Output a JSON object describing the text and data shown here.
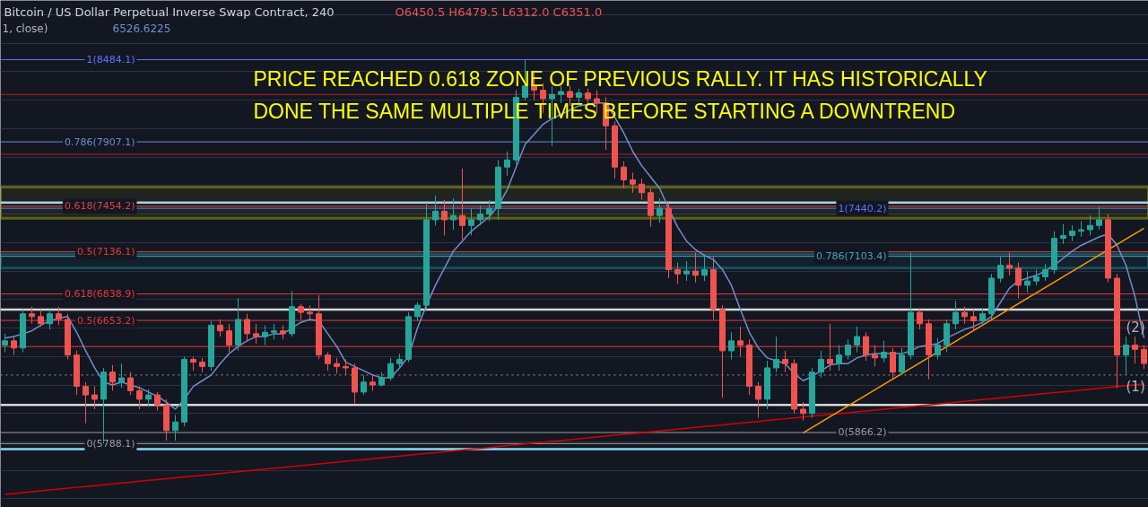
{
  "chart_data": {
    "type": "candlestick",
    "title": "Bitcoin / US Dollar Perpetual Inverse Swap Contract, 240",
    "categories": [
      null,
      null,
      null,
      null,
      null,
      null,
      null,
      null,
      null,
      null,
      null,
      null,
      null,
      null,
      null,
      null,
      null,
      null,
      null,
      null,
      null,
      null,
      null,
      null,
      null,
      null,
      null,
      null,
      null,
      null,
      null,
      null,
      null,
      null,
      null,
      null,
      null,
      null,
      null,
      null,
      null,
      null,
      null,
      null,
      null,
      null,
      null,
      null,
      null,
      null,
      null,
      null,
      null,
      null,
      null,
      null,
      null,
      null,
      null,
      null,
      null,
      null,
      null,
      null,
      null,
      null,
      null,
      null,
      null,
      null,
      null,
      null,
      null,
      null,
      null,
      null,
      null,
      null,
      null,
      null,
      null,
      null,
      null,
      null,
      null,
      null,
      null,
      null,
      null,
      null,
      null,
      null,
      null,
      null,
      null,
      null,
      null,
      null,
      null,
      null,
      null,
      null,
      null,
      null,
      null,
      null,
      null,
      null,
      null,
      null,
      null,
      null,
      null,
      null,
      null,
      null,
      null,
      null,
      null,
      null,
      null,
      null,
      null,
      null,
      null,
      null,
      null,
      null
    ],
    "ohlc": [
      [
        6480,
        6560,
        6430,
        6510
      ],
      [
        6510,
        6540,
        6410,
        6460
      ],
      [
        6460,
        6730,
        6430,
        6700
      ],
      [
        6700,
        6750,
        6630,
        6680
      ],
      [
        6680,
        6730,
        6610,
        6630
      ],
      [
        6630,
        6730,
        6590,
        6700
      ],
      [
        6700,
        6750,
        6620,
        6660
      ],
      [
        6660,
        6700,
        6380,
        6410
      ],
      [
        6410,
        6440,
        6130,
        6190
      ],
      [
        6190,
        6220,
        5930,
        6130
      ],
      [
        6130,
        6190,
        6030,
        6100
      ],
      [
        6100,
        6320,
        5790,
        6290
      ],
      [
        6290,
        6340,
        6160,
        6220
      ],
      [
        6220,
        6350,
        6180,
        6250
      ],
      [
        6250,
        6290,
        6130,
        6160
      ],
      [
        6160,
        6190,
        6030,
        6100
      ],
      [
        6100,
        6170,
        6050,
        6130
      ],
      [
        6130,
        6150,
        6020,
        6060
      ],
      [
        6060,
        6100,
        5810,
        5880
      ],
      [
        5880,
        5990,
        5810,
        5940
      ],
      [
        5940,
        6400,
        5910,
        6380
      ],
      [
        6380,
        6400,
        6300,
        6360
      ],
      [
        6360,
        6390,
        6290,
        6330
      ],
      [
        6330,
        6650,
        6300,
        6620
      ],
      [
        6620,
        6660,
        6540,
        6580
      ],
      [
        6580,
        6630,
        6430,
        6480
      ],
      [
        6480,
        6810,
        6440,
        6660
      ],
      [
        6660,
        6700,
        6510,
        6560
      ],
      [
        6560,
        6630,
        6490,
        6540
      ],
      [
        6540,
        6620,
        6480,
        6570
      ],
      [
        6570,
        6630,
        6520,
        6580
      ],
      [
        6580,
        6620,
        6520,
        6560
      ],
      [
        6560,
        6860,
        6540,
        6750
      ],
      [
        6750,
        6770,
        6660,
        6710
      ],
      [
        6710,
        6760,
        6660,
        6700
      ],
      [
        6700,
        6830,
        6380,
        6410
      ],
      [
        6410,
        6430,
        6300,
        6350
      ],
      [
        6350,
        6390,
        6280,
        6330
      ],
      [
        6330,
        6380,
        6270,
        6320
      ],
      [
        6320,
        6350,
        6070,
        6150
      ],
      [
        6150,
        6270,
        6130,
        6220
      ],
      [
        6220,
        6270,
        6160,
        6200
      ],
      [
        6200,
        6290,
        6190,
        6250
      ],
      [
        6250,
        6390,
        6230,
        6350
      ],
      [
        6350,
        6420,
        6320,
        6380
      ],
      [
        6380,
        6710,
        6360,
        6680
      ],
      [
        6680,
        6780,
        6650,
        6760
      ],
      [
        6760,
        7480,
        6730,
        7360
      ],
      [
        7360,
        7530,
        7320,
        7420
      ],
      [
        7420,
        7500,
        7250,
        7360
      ],
      [
        7360,
        7510,
        7290,
        7390
      ],
      [
        7390,
        7720,
        7220,
        7320
      ],
      [
        7320,
        7440,
        7250,
        7360
      ],
      [
        7360,
        7460,
        7320,
        7400
      ],
      [
        7400,
        7500,
        7350,
        7440
      ],
      [
        7440,
        7780,
        7360,
        7730
      ],
      [
        7730,
        7840,
        7670,
        7780
      ],
      [
        7780,
        8270,
        7750,
        8220
      ],
      [
        8220,
        8480,
        8200,
        8300
      ],
      [
        8300,
        8400,
        8200,
        8270
      ],
      [
        8270,
        8320,
        8110,
        8210
      ],
      [
        8210,
        8300,
        7880,
        8240
      ],
      [
        8240,
        8300,
        8180,
        8260
      ],
      [
        8260,
        8300,
        8160,
        8220
      ],
      [
        8220,
        8280,
        8170,
        8250
      ],
      [
        8250,
        8280,
        8160,
        8210
      ],
      [
        8210,
        8270,
        8110,
        8180
      ],
      [
        8180,
        8220,
        7850,
        8020
      ],
      [
        8020,
        8050,
        7650,
        7730
      ],
      [
        7730,
        7770,
        7580,
        7640
      ],
      [
        7640,
        7690,
        7550,
        7610
      ],
      [
        7610,
        7650,
        7500,
        7550
      ],
      [
        7550,
        7580,
        7310,
        7390
      ],
      [
        7390,
        7510,
        7340,
        7440
      ],
      [
        7440,
        7480,
        6950,
        7010
      ],
      [
        7010,
        7060,
        6910,
        6980
      ],
      [
        6980,
        7070,
        6930,
        7000
      ],
      [
        7000,
        7130,
        6920,
        6970
      ],
      [
        6970,
        7100,
        6930,
        7010
      ],
      [
        7010,
        7100,
        6660,
        6730
      ],
      [
        6730,
        6760,
        6110,
        6440
      ],
      [
        6440,
        6570,
        6380,
        6510
      ],
      [
        6510,
        6610,
        6400,
        6480
      ],
      [
        6480,
        6520,
        6130,
        6190
      ],
      [
        6190,
        6220,
        5970,
        6100
      ],
      [
        6100,
        6370,
        6030,
        6320
      ],
      [
        6320,
        6540,
        6290,
        6380
      ],
      [
        6380,
        6440,
        6290,
        6350
      ],
      [
        6350,
        6380,
        6000,
        6030
      ],
      [
        6030,
        6080,
        5950,
        6000
      ],
      [
        6000,
        6320,
        5970,
        6290
      ],
      [
        6290,
        6440,
        6250,
        6380
      ],
      [
        6380,
        6630,
        6300,
        6350
      ],
      [
        6350,
        6480,
        6300,
        6410
      ],
      [
        6410,
        6520,
        6380,
        6480
      ],
      [
        6480,
        6610,
        6430,
        6540
      ],
      [
        6540,
        6570,
        6370,
        6410
      ],
      [
        6410,
        6480,
        6330,
        6390
      ],
      [
        6390,
        6510,
        6360,
        6430
      ],
      [
        6430,
        6460,
        6250,
        6290
      ],
      [
        6290,
        6460,
        6270,
        6410
      ],
      [
        6410,
        7130,
        6380,
        6710
      ],
      [
        6710,
        6730,
        6590,
        6630
      ],
      [
        6630,
        6660,
        6240,
        6410
      ],
      [
        6410,
        6530,
        6380,
        6480
      ],
      [
        6480,
        6660,
        6430,
        6630
      ],
      [
        6630,
        6790,
        6590,
        6710
      ],
      [
        6710,
        6750,
        6630,
        6680
      ],
      [
        6680,
        6730,
        6580,
        6650
      ],
      [
        6650,
        6740,
        6620,
        6700
      ],
      [
        6700,
        6980,
        6660,
        6950
      ],
      [
        6950,
        7100,
        6920,
        7040
      ],
      [
        7040,
        7130,
        6970,
        7020
      ],
      [
        7020,
        7060,
        6810,
        6900
      ],
      [
        6900,
        7000,
        6850,
        6930
      ],
      [
        6930,
        7010,
        6900,
        6960
      ],
      [
        6960,
        7050,
        6930,
        7010
      ],
      [
        7010,
        7280,
        6980,
        7230
      ],
      [
        7230,
        7330,
        7190,
        7250
      ],
      [
        7250,
        7320,
        7210,
        7280
      ],
      [
        7280,
        7350,
        7240,
        7290
      ],
      [
        7290,
        7390,
        7250,
        7320
      ],
      [
        7320,
        7450,
        7290,
        7360
      ],
      [
        7360,
        7400,
        6920,
        6950
      ],
      [
        6950,
        6980,
        6180,
        6410
      ],
      [
        6410,
        6540,
        6270,
        6480
      ],
      [
        6480,
        6540,
        6350,
        6450
      ],
      [
        6450.5,
        6479.5,
        6312.0,
        6351.0
      ]
    ],
    "series": [
      {
        "type": "line",
        "color": "#6f8fc9",
        "values": [
          6530,
          6540,
          6560,
          6580,
          6620,
          6650,
          6670,
          6680,
          6570,
          6440,
          6320,
          6220,
          6200,
          6220,
          6200,
          6180,
          6150,
          6120,
          6080,
          6030,
          6100,
          6190,
          6230,
          6270,
          6350,
          6420,
          6470,
          6510,
          6540,
          6540,
          6560,
          6560,
          6600,
          6640,
          6660,
          6650,
          6560,
          6470,
          6360,
          6330,
          6300,
          6270,
          6250,
          6250,
          6320,
          6400,
          6600,
          6760,
          6900,
          7020,
          7140,
          7210,
          7280,
          7330,
          7380,
          7460,
          7570,
          7730,
          7890,
          7960,
          8030,
          8070,
          8100,
          8130,
          8160,
          8170,
          8180,
          8180,
          8080,
          7970,
          7840,
          7740,
          7660,
          7580,
          7440,
          7310,
          7210,
          7150,
          7110,
          7080,
          7010,
          6900,
          6730,
          6570,
          6460,
          6390,
          6370,
          6350,
          6280,
          6230,
          6260,
          6300,
          6340,
          6350,
          6350,
          6390,
          6410,
          6420,
          6420,
          6420,
          6420,
          6440,
          6470,
          6480,
          6490,
          6530,
          6560,
          6590,
          6610,
          6640,
          6680,
          6780,
          6880,
          6930,
          6950,
          6970,
          7000,
          7040,
          7090,
          7140,
          7180,
          7210,
          7240,
          7260,
          7180,
          7040,
          6820,
          6530
        ]
      },
      {
        "type": "line",
        "color": "#d50000",
        "values": [
          5432,
          5438,
          5444,
          5450,
          5456,
          5463,
          5469,
          5475,
          5481,
          5487,
          5493,
          5499,
          5505,
          5511,
          5517,
          5524,
          5530,
          5536,
          5542,
          5548,
          5554,
          5560,
          5566,
          5572,
          5578,
          5585,
          5591,
          5597,
          5603,
          5609,
          5615,
          5621,
          5627,
          5633,
          5639,
          5646,
          5652,
          5658,
          5664,
          5670,
          5676,
          5682,
          5688,
          5694,
          5700,
          5707,
          5713,
          5719,
          5725,
          5731,
          5737,
          5743,
          5749,
          5755,
          5761,
          5768,
          5774,
          5780,
          5786,
          5792,
          5798,
          5804,
          5810,
          5816,
          5822,
          5829,
          5835,
          5841,
          5847,
          5853,
          5859,
          5865,
          5871,
          5877,
          5883,
          5890,
          5896,
          5902,
          5908,
          5914,
          5920,
          5926,
          5932,
          5938,
          5944,
          5951,
          5957,
          5963,
          5969,
          5975,
          5981,
          5987,
          5993,
          5999,
          6005,
          6012,
          6018,
          6024,
          6030,
          6036,
          6042,
          6048,
          6054,
          6060,
          6066,
          6073,
          6079,
          6085,
          6091,
          6097,
          6103,
          6109,
          6115,
          6121,
          6127,
          6134,
          6140,
          6146,
          6152,
          6158,
          6164,
          6170,
          6176,
          6182,
          6188,
          6195,
          6201,
          6207
        ]
      },
      {
        "type": "line",
        "color": "#ff9800",
        "values": [
          null,
          null,
          null,
          null,
          null,
          null,
          null,
          null,
          null,
          null,
          null,
          null,
          null,
          null,
          null,
          null,
          null,
          null,
          null,
          null,
          null,
          null,
          null,
          null,
          null,
          null,
          null,
          null,
          null,
          null,
          null,
          null,
          null,
          null,
          null,
          null,
          null,
          null,
          null,
          null,
          null,
          null,
          null,
          null,
          null,
          null,
          null,
          null,
          null,
          null,
          null,
          null,
          null,
          null,
          null,
          null,
          null,
          null,
          null,
          null,
          null,
          null,
          null,
          null,
          null,
          null,
          null,
          null,
          null,
          null,
          null,
          null,
          null,
          null,
          null,
          null,
          null,
          null,
          null,
          null,
          null,
          null,
          null,
          null,
          null,
          null,
          null,
          null,
          null,
          5864,
          5902,
          5939,
          5977,
          6015,
          6053,
          6091,
          6128,
          6166,
          6204,
          6242,
          6280,
          6317,
          6355,
          6393,
          6431,
          6469,
          6506,
          6544,
          6582,
          6620,
          6658,
          6695,
          6733,
          6771,
          6809,
          6847,
          6884,
          6922,
          6960,
          6998,
          7036,
          7073,
          7111,
          7149,
          7187,
          7225,
          7262,
          7300
        ]
      }
    ],
    "ylim": [
      5340,
      8900
    ],
    "yticks": [
      {
        "value": 5400,
        "label": null
      },
      {
        "value": 5600,
        "label": null
      },
      {
        "value": 5800,
        "label": null
      },
      {
        "value": 6000,
        "label": null
      },
      {
        "value": 6200,
        "label": null
      },
      {
        "value": 6400,
        "label": null
      },
      {
        "value": 6600,
        "label": null
      },
      {
        "value": 6800,
        "label": null
      },
      {
        "value": 7000,
        "label": null
      },
      {
        "value": 7200,
        "label": null
      },
      {
        "value": 7400,
        "label": null
      },
      {
        "value": 7600,
        "label": null
      },
      {
        "value": 7800,
        "label": null
      },
      {
        "value": 8000,
        "label": null
      },
      {
        "value": 8200,
        "label": null
      },
      {
        "value": 8400,
        "label": null
      },
      {
        "value": 8600,
        "label": null
      },
      {
        "value": 8800,
        "label": null
      }
    ],
    "grid": "y",
    "tick_labels": false,
    "ref_lines": [
      {
        "axis": "y",
        "value": 8484.1,
        "label": "1(8484.1)",
        "color": "#5c74ff"
      },
      {
        "axis": "y",
        "value": 7907.1,
        "label": "0.786(7907.1)",
        "color": "#6a8fd0"
      },
      {
        "axis": "y",
        "value": 7454.2,
        "label": "0.618(7454.2)",
        "color": "#e04040"
      },
      {
        "axis": "y",
        "value": 7136.1,
        "label": "0.5(7136.1)",
        "color": "#e53935"
      },
      {
        "axis": "y",
        "value": 5788.1,
        "label": "0(5788.1)",
        "color": "#9e9e9e"
      },
      {
        "axis": "y",
        "value": 7440.2,
        "label": "1(7440.2)",
        "color": "#5c74ff"
      },
      {
        "axis": "y",
        "value": 7103.4,
        "label": "0.786(7103.4)",
        "color": "#4aa3b8"
      },
      {
        "axis": "y",
        "value": 6838.9,
        "label": "0.618(6838.9)",
        "color": "#e53935"
      },
      {
        "axis": "y",
        "value": 6653.2,
        "label": "0.5(6653.2)",
        "color": "#e53935"
      },
      {
        "axis": "y",
        "value": 5866.2,
        "label": "0(5866.2)",
        "color": "#9e9e9e"
      },
      {
        "axis": "y",
        "value": 6470,
        "color": "#e53935"
      },
      {
        "axis": "y",
        "value": 8240,
        "color": "#b71c1c"
      },
      {
        "axis": "y",
        "value": 7820,
        "color": "#b71c1c"
      },
      {
        "axis": "y",
        "value": 7480,
        "color": "#a9cfe8"
      },
      {
        "axis": "y",
        "value": 6730,
        "color": "#d6d6d6"
      },
      {
        "axis": "y",
        "value": 6060,
        "color": "#d6d6d6"
      },
      {
        "axis": "y",
        "value": 5750,
        "color": "#8fd8f8"
      },
      {
        "axis": "y",
        "value": 6270,
        "color": "#9598a1",
        "line_style": "dotted"
      }
    ],
    "bands": [
      {
        "axis": "y",
        "from": 7370,
        "to": 7590,
        "color": "#ffff00"
      },
      {
        "axis": "y",
        "from": 7020,
        "to": 7120,
        "color": "#26c6da"
      }
    ],
    "annotations": [
      "O6450.5 H6479.5 L6312.0 C6351.0",
      "1, close)",
      "6526.6225",
      "PRICE REACHED 0.618 ZONE OF PREVIOUS RALLY. IT HAS HISTORICALLY",
      "DONE THE SAME MULTIPLE TIMES BEFORE STARTING A DOWNTREND",
      "(2)",
      "(1)"
    ]
  }
}
